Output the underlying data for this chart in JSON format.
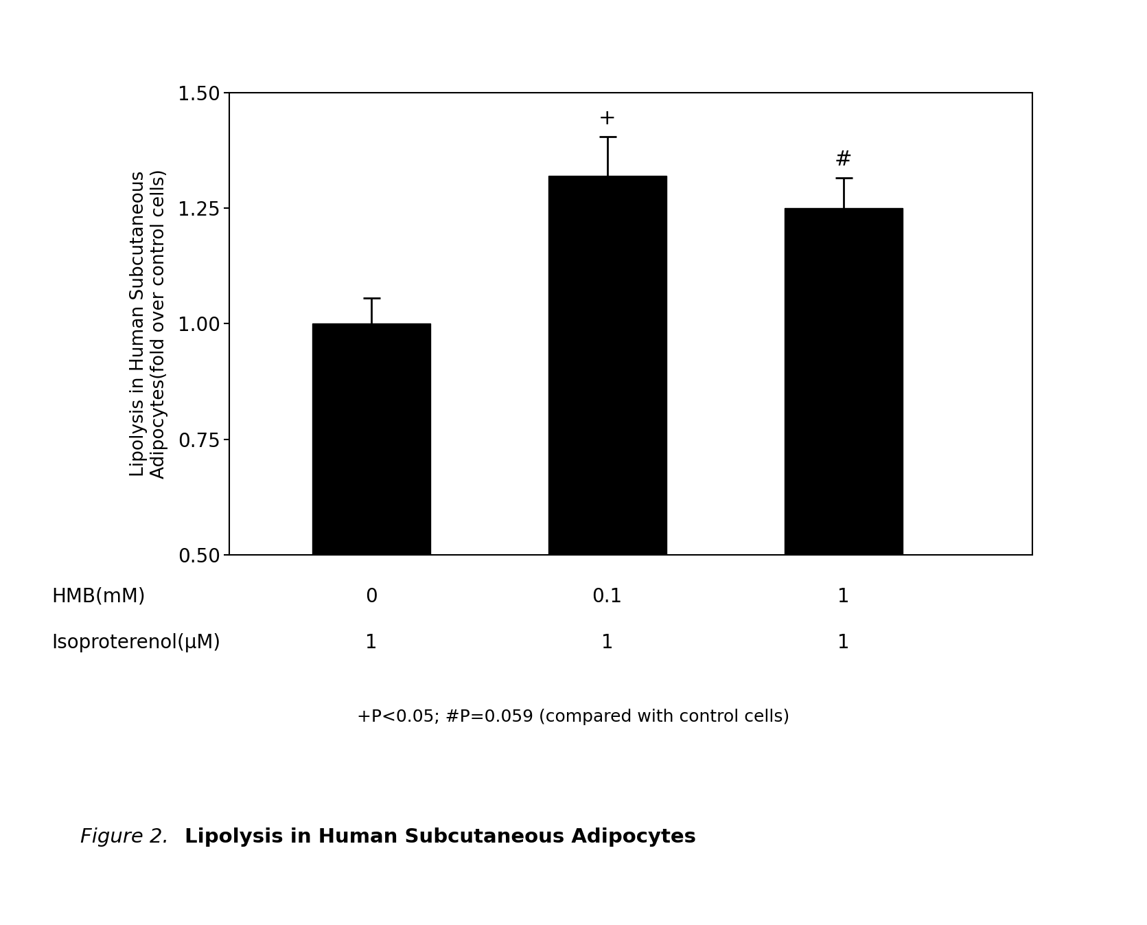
{
  "categories": [
    "0",
    "0.1",
    "1"
  ],
  "values": [
    1.0,
    1.32,
    1.25
  ],
  "errors": [
    0.055,
    0.085,
    0.065
  ],
  "bar_color": "#000000",
  "bar_width": 0.5,
  "bar_positions": [
    1,
    2,
    3
  ],
  "ylim": [
    0.5,
    1.5
  ],
  "yticks": [
    0.5,
    0.75,
    1.0,
    1.25,
    1.5
  ],
  "ylabel": "Lipolysis in Human Subcutaneous\nAdipocytes(fold over control cells)",
  "hmb_label": "HMB(mM)",
  "iso_label": "Isoproterenol(μM)",
  "hmb_values": [
    "0",
    "0.1",
    "1"
  ],
  "iso_values": [
    "1",
    "1",
    "1"
  ],
  "annotation_bar2": "+",
  "annotation_bar3": "#",
  "footnote": "+P<0.05; #P=0.059 (compared with control cells)",
  "figure_label_italic": "Figure 2.",
  "figure_title_bold": " Lipolysis in Human Subcutaneous Adipocytes",
  "background_color": "#ffffff",
  "xlim": [
    0.4,
    3.8
  ],
  "bar_bottom": 0.5
}
